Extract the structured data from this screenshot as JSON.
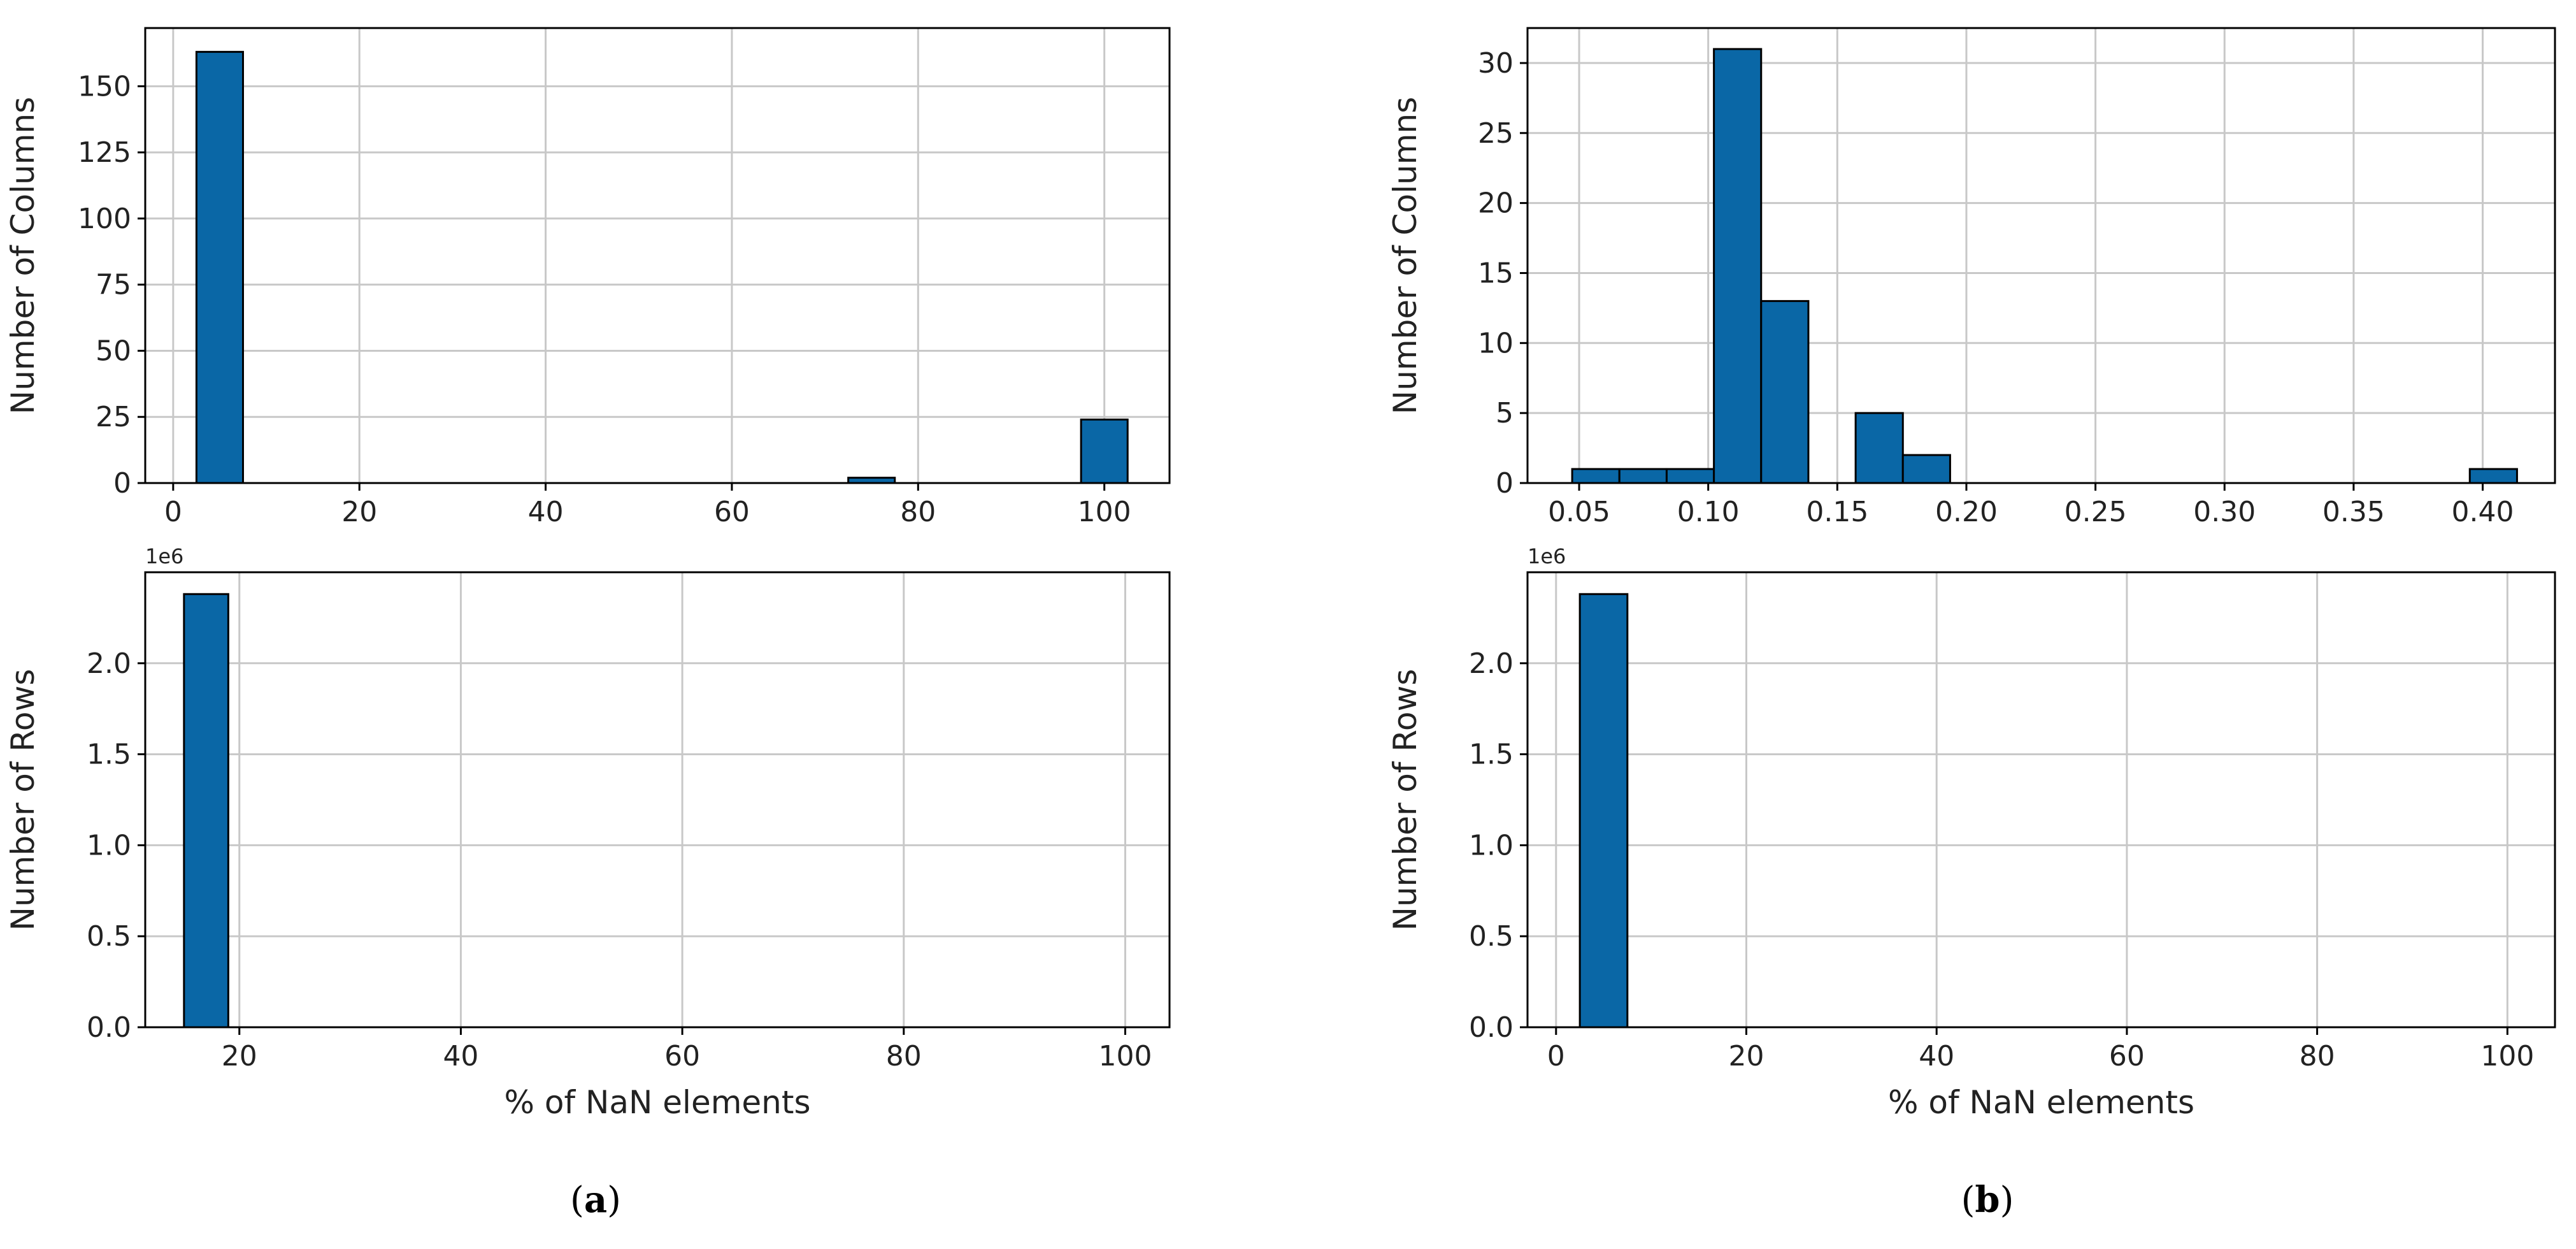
{
  "panels": [
    {
      "label_open": "(",
      "label_letter": "a",
      "label_close": ")"
    },
    {
      "label_open": "(",
      "label_letter": "b",
      "label_close": ")"
    }
  ],
  "colors": {
    "bar_fill": "#0a67a6",
    "bar_edge": "#000000",
    "grid": "#c8c8c8",
    "axis": "#000000",
    "text": "#222222"
  },
  "chart_data": [
    {
      "panel": "a",
      "position": "top",
      "type": "bar",
      "xlabel": "",
      "ylabel": "Number of Columns",
      "xlim": [
        -3,
        107
      ],
      "ylim": [
        0,
        172
      ],
      "xticks": [
        0,
        20,
        40,
        60,
        80,
        100
      ],
      "xtick_labels": [
        "0",
        "20",
        "40",
        "60",
        "80",
        "100"
      ],
      "yticks": [
        0,
        25,
        50,
        75,
        100,
        125,
        150
      ],
      "ytick_labels": [
        "0",
        "25",
        "50",
        "75",
        "100",
        "125",
        "150"
      ],
      "y_offset_label": "",
      "bins": [
        {
          "x0": 2.5,
          "x1": 7.5,
          "value": 163
        },
        {
          "x0": 72.5,
          "x1": 77.5,
          "value": 2
        },
        {
          "x0": 97.5,
          "x1": 102.5,
          "value": 24
        }
      ],
      "grid": true
    },
    {
      "panel": "a",
      "position": "bottom",
      "type": "bar",
      "xlabel": "% of NaN elements",
      "ylabel": "Number of Rows",
      "xlim": [
        11.5,
        104
      ],
      "ylim": [
        0,
        2.5
      ],
      "xticks": [
        20,
        40,
        60,
        80,
        100
      ],
      "xtick_labels": [
        "20",
        "40",
        "60",
        "80",
        "100"
      ],
      "yticks": [
        0,
        0.5,
        1.0,
        1.5,
        2.0
      ],
      "ytick_labels": [
        "0.0",
        "0.5",
        "1.0",
        "1.5",
        "2.0"
      ],
      "y_offset_label": "1e6",
      "bins": [
        {
          "x0": 15.0,
          "x1": 19.0,
          "value": 2.38
        }
      ],
      "grid": true
    },
    {
      "panel": "b",
      "position": "top",
      "type": "bar",
      "xlabel": "",
      "ylabel": "Number of Columns",
      "xlim": [
        0.03,
        0.428
      ],
      "ylim": [
        0,
        32.5
      ],
      "xticks": [
        0.05,
        0.1,
        0.15,
        0.2,
        0.25,
        0.3,
        0.35,
        0.4
      ],
      "xtick_labels": [
        "0.05",
        "0.10",
        "0.15",
        "0.20",
        "0.25",
        "0.30",
        "0.35",
        "0.40"
      ],
      "yticks": [
        0,
        5,
        10,
        15,
        20,
        25,
        30
      ],
      "ytick_labels": [
        "0",
        "5",
        "10",
        "15",
        "20",
        "25",
        "30"
      ],
      "y_offset_label": "",
      "bins": [
        {
          "x0": 0.0473,
          "x1": 0.0656,
          "value": 1
        },
        {
          "x0": 0.0656,
          "x1": 0.0839,
          "value": 1
        },
        {
          "x0": 0.0839,
          "x1": 0.1022,
          "value": 1
        },
        {
          "x0": 0.1022,
          "x1": 0.1205,
          "value": 31
        },
        {
          "x0": 0.1205,
          "x1": 0.1388,
          "value": 13
        },
        {
          "x0": 0.1571,
          "x1": 0.1754,
          "value": 5
        },
        {
          "x0": 0.1754,
          "x1": 0.1937,
          "value": 2
        },
        {
          "x0": 0.395,
          "x1": 0.4133,
          "value": 1
        }
      ],
      "grid": true
    },
    {
      "panel": "b",
      "position": "bottom",
      "type": "bar",
      "xlabel": "% of NaN elements",
      "ylabel": "Number of Rows",
      "xlim": [
        -3,
        105
      ],
      "ylim": [
        0,
        2.5
      ],
      "xticks": [
        0,
        20,
        40,
        60,
        80,
        100
      ],
      "xtick_labels": [
        "0",
        "20",
        "40",
        "60",
        "80",
        "100"
      ],
      "yticks": [
        0,
        0.5,
        1.0,
        1.5,
        2.0
      ],
      "ytick_labels": [
        "0.0",
        "0.5",
        "1.0",
        "1.5",
        "2.0"
      ],
      "y_offset_label": "1e6",
      "bins": [
        {
          "x0": 2.5,
          "x1": 7.5,
          "value": 2.38
        }
      ],
      "grid": true
    }
  ]
}
